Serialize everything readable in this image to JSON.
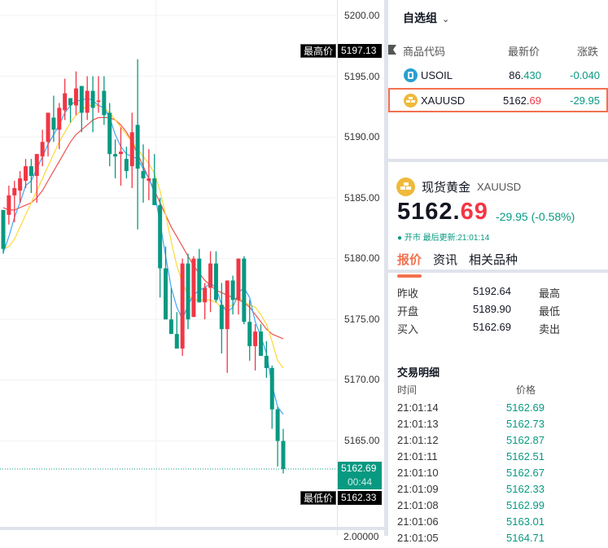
{
  "chart_data": {
    "type": "candlestick",
    "title": "XAUUSD",
    "price_axis": {
      "ticks": [
        {
          "label": "5200.00",
          "value": 5200
        },
        {
          "label": "5195.00",
          "value": 5195
        },
        {
          "label": "5190.00",
          "value": 5190
        },
        {
          "label": "5185.00",
          "value": 5185
        },
        {
          "label": "5180.00",
          "value": 5180
        },
        {
          "label": "5175.00",
          "value": 5175
        },
        {
          "label": "5170.00",
          "value": 5170
        },
        {
          "label": "5165.00",
          "value": 5165
        }
      ],
      "bottom_pane_label": "2.00000"
    },
    "markers": {
      "high": {
        "name": "最高价",
        "value": "5197.13"
      },
      "low": {
        "name": "最低价",
        "value": "5162.33"
      },
      "last": {
        "value": "5162.69",
        "countdown": "00:44"
      }
    },
    "colors": {
      "up": "#f23645",
      "down": "#089981",
      "ma_fast": "#42a5f5",
      "ma_mid": "#fdd835",
      "ma_slow": "#ef5350"
    },
    "candles": [
      [
        5184.0,
        5183.6,
        5180.4,
        5180.8
      ],
      [
        5183.6,
        5186.0,
        5182.8,
        5185.2
      ],
      [
        5185.2,
        5186.4,
        5183.0,
        5185.8
      ],
      [
        5185.6,
        5187.2,
        5184.6,
        5186.6
      ],
      [
        5186.4,
        5188.2,
        5185.8,
        5187.6
      ],
      [
        5187.6,
        5188.2,
        5185.4,
        5186.8
      ],
      [
        5186.8,
        5188.4,
        5184.6,
        5188.6
      ],
      [
        5188.4,
        5190.6,
        5187.6,
        5189.6
      ],
      [
        5189.6,
        5192.0,
        5188.4,
        5192.0
      ],
      [
        5191.6,
        5193.4,
        5189.6,
        5190.6
      ],
      [
        5190.6,
        5192.8,
        5189.0,
        5192.4
      ],
      [
        5192.2,
        5194.8,
        5191.4,
        5193.6
      ],
      [
        5193.2,
        5193.2,
        5191.2,
        5192.6
      ],
      [
        5192.6,
        5195.4,
        5191.8,
        5194.0
      ],
      [
        5194.2,
        5194.2,
        5190.4,
        5192.0
      ],
      [
        5192.0,
        5195.0,
        5191.4,
        5193.8
      ],
      [
        5193.8,
        5195.0,
        5190.4,
        5192.4
      ],
      [
        5193.0,
        5195.0,
        5192.0,
        5193.0
      ],
      [
        5193.8,
        5195.0,
        5191.0,
        5191.8
      ],
      [
        5192.0,
        5192.8,
        5187.6,
        5188.6
      ],
      [
        5188.6,
        5189.8,
        5186.6,
        5188.4
      ],
      [
        5188.6,
        5190.8,
        5186.0,
        5188.8
      ],
      [
        5188.2,
        5189.2,
        5186.6,
        5187.2
      ],
      [
        5187.6,
        5192.0,
        5185.8,
        5190.4
      ],
      [
        5191.0,
        5196.4,
        5182.4,
        5187.4
      ],
      [
        5187.2,
        5189.4,
        5184.6,
        5186.6
      ],
      [
        5186.4,
        5189.0,
        5184.8,
        5186.6
      ],
      [
        5186.6,
        5188.6,
        5184.4,
        5184.4
      ],
      [
        5184.4,
        5185.0,
        5176.8,
        5179.2
      ],
      [
        5179.2,
        5181.0,
        5175.4,
        5175.0
      ],
      [
        5175.0,
        5177.6,
        5174.2,
        5173.8
      ],
      [
        5173.8,
        5175.6,
        5173.2,
        5172.6
      ],
      [
        5172.6,
        5180.0,
        5172.0,
        5179.6
      ],
      [
        5179.6,
        5180.4,
        5174.2,
        5175.0
      ],
      [
        5175.2,
        5180.2,
        5175.8,
        5180.0
      ],
      [
        5180.0,
        5180.8,
        5177.6,
        5176.4
      ],
      [
        5176.4,
        5178.0,
        5175.0,
        5177.6
      ],
      [
        5177.6,
        5180.6,
        5175.6,
        5179.6
      ],
      [
        5179.6,
        5180.6,
        5176.4,
        5176.6
      ],
      [
        5176.2,
        5178.0,
        5172.2,
        5174.2
      ],
      [
        5174.2,
        5178.2,
        5170.6,
        5178.2
      ],
      [
        5178.2,
        5178.6,
        5175.4,
        5176.6
      ],
      [
        5176.6,
        5179.6,
        5175.4,
        5180.0
      ],
      [
        5180.0,
        5180.2,
        5174.6,
        5174.8
      ],
      [
        5174.8,
        5176.6,
        5171.6,
        5172.8
      ],
      [
        5172.8,
        5174.6,
        5170.8,
        5174.0
      ],
      [
        5174.0,
        5174.6,
        5172.6,
        5172.0
      ],
      [
        5172.0,
        5173.2,
        5170.2,
        5171.0
      ],
      [
        5171.0,
        5171.2,
        5166.0,
        5167.6
      ],
      [
        5167.6,
        5167.8,
        5162.9,
        5165.0
      ],
      [
        5165.0,
        5166.0,
        5162.33,
        5162.69
      ]
    ],
    "ma_fast": [
      5180.5,
      5181.8,
      5183.4,
      5184.6,
      5186.0,
      5186.4,
      5187.4,
      5188.4,
      5189.4,
      5190.2,
      5191.0,
      5192.0,
      5192.6,
      5193.0,
      5193.0,
      5193.2,
      5193.0,
      5192.6,
      5192.4,
      5191.6,
      5190.2,
      5189.2,
      5188.6,
      5188.4,
      5188.2,
      5187.4,
      5186.6,
      5185.4,
      5183.0,
      5180.2,
      5177.6,
      5176.0,
      5175.0,
      5176.2,
      5177.0,
      5177.4,
      5177.6,
      5178.0,
      5177.6,
      5176.2,
      5175.6,
      5176.0,
      5177.2,
      5177.6,
      5176.8,
      5174.8,
      5173.6,
      5172.2,
      5169.6,
      5167.8,
      5167.2
    ],
    "ma_mid": [
      5180.8,
      5181.0,
      5181.6,
      5182.6,
      5183.6,
      5184.6,
      5185.6,
      5186.6,
      5187.6,
      5188.6,
      5189.6,
      5190.4,
      5191.2,
      5191.8,
      5192.2,
      5192.6,
      5192.6,
      5192.6,
      5192.4,
      5192.0,
      5191.4,
      5190.8,
      5190.2,
      5189.6,
      5189.0,
      5188.4,
      5187.8,
      5187.0,
      5185.6,
      5183.6,
      5181.4,
      5179.4,
      5178.0,
      5177.0,
      5176.6,
      5176.6,
      5176.6,
      5176.6,
      5176.4,
      5176.0,
      5176.0,
      5176.2,
      5176.8,
      5176.4,
      5176.2,
      5176.0,
      5175.4,
      5174.6,
      5173.2,
      5171.6,
      5171.0
    ],
    "ma_slow": [
      5184.2,
      5184.0,
      5184.0,
      5184.2,
      5184.4,
      5184.6,
      5185.0,
      5185.6,
      5186.4,
      5187.2,
      5188.0,
      5188.8,
      5189.6,
      5190.2,
      5190.6,
      5191.0,
      5191.4,
      5191.6,
      5191.6,
      5191.6,
      5191.4,
      5191.0,
      5190.4,
      5189.6,
      5188.6,
      5187.6,
      5186.6,
      5185.6,
      5184.6,
      5183.6,
      5182.6,
      5181.8,
      5181.0,
      5180.2,
      5179.4,
      5178.8,
      5178.2,
      5177.8,
      5177.4,
      5177.2,
      5177.0,
      5176.8,
      5176.6,
      5176.4,
      5176.0,
      5175.4,
      5174.8,
      5174.2,
      5173.8,
      5173.6,
      5173.4
    ]
  },
  "watchlist": {
    "title": "自选组",
    "columns": [
      "商品代码",
      "最新价",
      "涨跌"
    ],
    "rows": [
      {
        "symbol": "USOIL",
        "price_int": "86.",
        "price_dec": "430",
        "change": "-0.040",
        "icon": "oil-icon",
        "icon_color": "#2a9fd0"
      },
      {
        "symbol": "XAUUSD",
        "price_int": "5162.",
        "price_dec": "69",
        "change": "-29.95",
        "icon": "gold-bar-icon",
        "icon_color": "#f0b93a",
        "selected": true
      }
    ]
  },
  "detail": {
    "name": "现货黄金",
    "code": "XAUUSD",
    "price_int": "5162.",
    "price_dec": "69",
    "change": "-29.95 (-0.58%)",
    "status": "● 开市 最后更新:21:01:14",
    "tabs": [
      "报价",
      "资讯",
      "相关品种"
    ],
    "stats": [
      {
        "label": "昨收",
        "value": "5192.64",
        "label2": "最高"
      },
      {
        "label": "开盘",
        "value": "5189.90",
        "label2": "最低"
      },
      {
        "label": "买入",
        "value": "5162.69",
        "label2": "卖出"
      }
    ]
  },
  "trades": {
    "title": "交易明细",
    "columns": [
      "时间",
      "价格"
    ],
    "rows": [
      {
        "time": "21:01:14",
        "price": "5162.69"
      },
      {
        "time": "21:01:13",
        "price": "5162.73"
      },
      {
        "time": "21:01:12",
        "price": "5162.87"
      },
      {
        "time": "21:01:11",
        "price": "5162.51"
      },
      {
        "time": "21:01:10",
        "price": "5162.67"
      },
      {
        "time": "21:01:09",
        "price": "5162.33"
      },
      {
        "time": "21:01:08",
        "price": "5162.99"
      },
      {
        "time": "21:01:06",
        "price": "5163.01"
      },
      {
        "time": "21:01:05",
        "price": "5164.71"
      }
    ]
  }
}
